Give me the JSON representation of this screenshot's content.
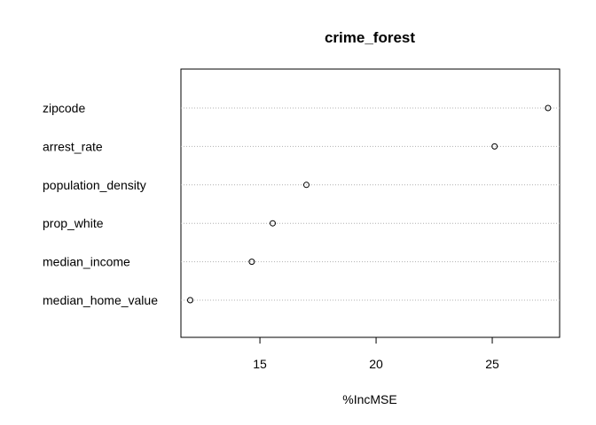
{
  "chart_data": {
    "type": "scatter",
    "subtype": "dotchart",
    "title": "crime_forest",
    "xlabel": "%IncMSE",
    "ylabel": "",
    "categories": [
      "zipcode",
      "arrest_rate",
      "population_density",
      "prop_white",
      "median_income",
      "median_home_value"
    ],
    "values": [
      27.4,
      25.1,
      17.0,
      15.55,
      14.65,
      12.0
    ],
    "xlim": [
      11.6,
      27.9
    ],
    "xticks": [
      "15",
      "20",
      "25"
    ],
    "grid": "dotted horizontal lines per category",
    "legend": "none"
  }
}
